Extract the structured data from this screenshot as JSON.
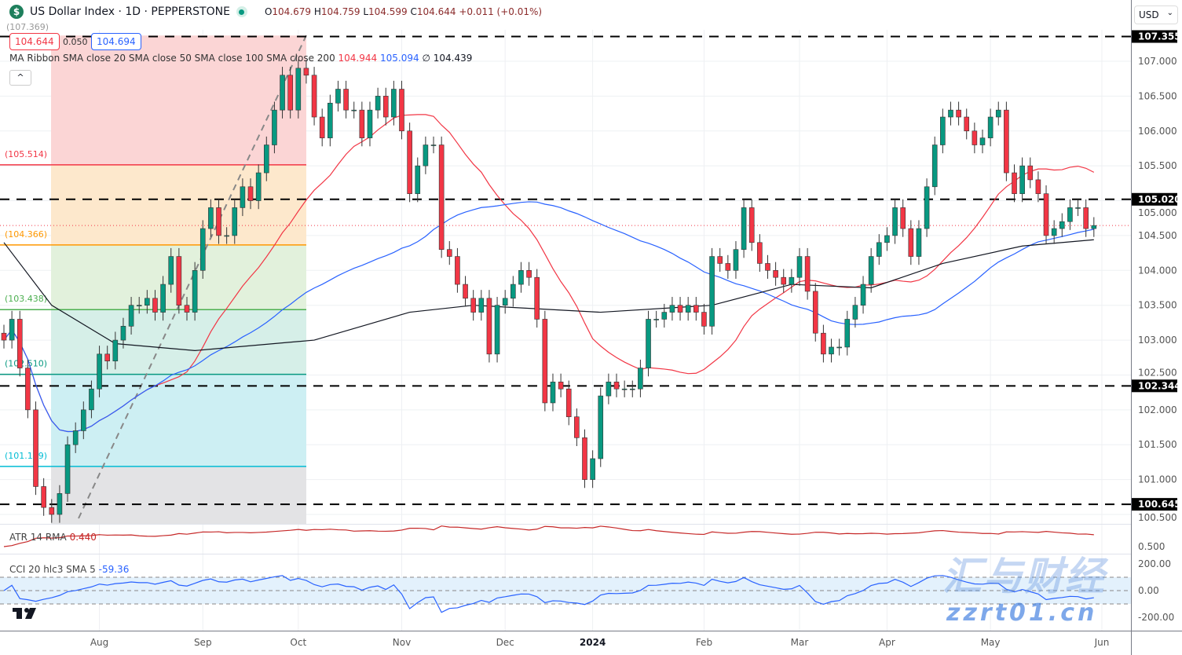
{
  "header": {
    "symbol_title": "US Dollar Index · 1D · PEPPERSTONE",
    "logo_letter": "$",
    "open_label": "O",
    "open": "104.679",
    "high_label": "H",
    "high": "104.759",
    "low_label": "L",
    "low": "104.599",
    "close_label": "C",
    "close": "104.644",
    "change": "+0.011 (+0.01%)"
  },
  "measure": {
    "left": "104.644",
    "diff": "0.050",
    "right": "104.694",
    "top_label": "(107.369)"
  },
  "ma_legend": {
    "label": "MA Ribbon SMA close 20 SMA close 50 SMA close 100 SMA close 200",
    "v20": "104.944",
    "v50": "105.094",
    "v100": "∅",
    "v200": "104.439"
  },
  "collapse_label": "^",
  "currency": "USD",
  "atr_legend": {
    "label": "ATR 14 RMA",
    "value": "0.440"
  },
  "cci_legend": {
    "label": "CCI 20 hlc3 SMA 5",
    "value": "-59.36"
  },
  "watermark": {
    "top": "汇与财经",
    "bottom": "zzrt01.cn"
  },
  "colors": {
    "up": "#089981",
    "down": "#f23645",
    "sma20": "#f23645",
    "sma50": "#2962ff",
    "sma200": "#131722",
    "atr": "#c62828",
    "cci": "#2962ff"
  },
  "chart_data": [
    {
      "type": "candlestick",
      "ylim": [
        100.4,
        107.45
      ],
      "y_ticks": [
        "107.000",
        "106.500",
        "106.000",
        "105.500",
        "105.000",
        "104.500",
        "104.000",
        "103.500",
        "103.000",
        "102.500",
        "102.000",
        "101.500",
        "101.000",
        "100.500"
      ],
      "x_ticks": [
        {
          "label": "Aug",
          "index": 12
        },
        {
          "label": "Sep",
          "index": 25
        },
        {
          "label": "Oct",
          "index": 37
        },
        {
          "label": "Nov",
          "index": 50
        },
        {
          "label": "Dec",
          "index": 63
        },
        {
          "label": "2024",
          "index": 74
        },
        {
          "label": "Feb",
          "index": 88
        },
        {
          "label": "Mar",
          "index": 100
        },
        {
          "label": "Apr",
          "index": 111
        },
        {
          "label": "May",
          "index": 124
        },
        {
          "label": "Jun",
          "index": 138
        }
      ],
      "closes": [
        103.0,
        103.3,
        102.6,
        102.0,
        100.9,
        100.6,
        100.5,
        100.8,
        101.5,
        101.7,
        102.0,
        102.3,
        102.8,
        102.7,
        103.0,
        103.2,
        103.5,
        103.5,
        103.6,
        103.4,
        103.8,
        104.2,
        103.5,
        103.4,
        104.0,
        104.6,
        104.9,
        104.5,
        104.5,
        104.9,
        105.2,
        105.0,
        105.4,
        105.8,
        106.3,
        106.8,
        106.3,
        106.9,
        106.8,
        106.2,
        105.9,
        106.4,
        106.6,
        106.3,
        106.3,
        105.9,
        106.3,
        106.5,
        106.2,
        106.6,
        106.0,
        105.1,
        105.5,
        105.8,
        105.8,
        104.3,
        104.2,
        103.8,
        103.6,
        103.4,
        103.6,
        102.8,
        103.5,
        103.6,
        103.8,
        104.0,
        103.9,
        103.3,
        102.1,
        102.4,
        102.3,
        101.9,
        101.6,
        101.0,
        101.3,
        102.2,
        102.4,
        102.3,
        102.3,
        102.3,
        102.6,
        103.3,
        103.3,
        103.4,
        103.5,
        103.4,
        103.5,
        103.4,
        103.2,
        104.2,
        104.1,
        104.0,
        104.3,
        104.9,
        104.4,
        104.1,
        104.0,
        103.9,
        103.8,
        103.9,
        104.2,
        103.7,
        103.1,
        102.8,
        102.9,
        102.9,
        103.3,
        103.5,
        103.8,
        104.2,
        104.4,
        104.5,
        104.9,
        104.6,
        104.2,
        104.6,
        105.2,
        105.8,
        106.2,
        106.3,
        106.2,
        106.0,
        105.8,
        105.9,
        106.2,
        106.3,
        105.4,
        105.1,
        105.5,
        105.3,
        105.1,
        104.5,
        104.6,
        104.7,
        104.9,
        104.9,
        104.6,
        104.644
      ],
      "series": [
        {
          "period": 20
        },
        {
          "period": 50
        },
        {
          "anchors": [
            [
              0,
              104.4
            ],
            [
              6,
              103.5
            ],
            [
              14,
              102.95
            ],
            [
              24,
              102.85
            ],
            [
              39,
              103.0
            ],
            [
              51,
              103.4
            ],
            [
              59,
              103.5
            ],
            [
              75,
              103.4
            ],
            [
              89,
              103.5
            ],
            [
              99,
              103.8
            ],
            [
              109,
              103.75
            ],
            [
              118,
              104.1
            ],
            [
              128,
              104.35
            ],
            [
              137,
              104.44
            ]
          ]
        }
      ],
      "horizontal_levels": [
        "107.355",
        "105.020",
        "102.344",
        "100.645"
      ],
      "fib_levels": [
        {
          "label": "(107.369)",
          "value": 107.369,
          "color": "#9e9e9e"
        },
        {
          "label": "(105.514)",
          "value": 105.514,
          "color": "#f23645"
        },
        {
          "label": "(104.366)",
          "value": 104.366,
          "color": "#ff9800"
        },
        {
          "label": "(103.438)",
          "value": 103.438,
          "color": "#4caf50"
        },
        {
          "label": "(102.510)",
          "value": 102.51,
          "color": "#089981"
        },
        {
          "label": "(101.189)",
          "value": 101.189,
          "color": "#00bcd4"
        }
      ],
      "last_price": 104.644
    },
    {
      "type": "line",
      "y_ticks": [
        "0.500"
      ]
    },
    {
      "type": "line",
      "y_ticks": [
        "200.00",
        "0.00",
        "-200.00"
      ],
      "bands": [
        100,
        -100
      ]
    }
  ]
}
